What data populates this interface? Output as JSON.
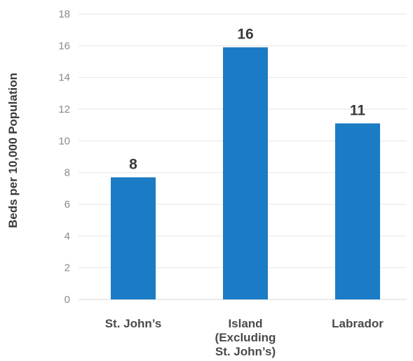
{
  "chart_data": {
    "type": "bar",
    "title": "",
    "xlabel": "",
    "ylabel": "Beds per 10,000 Population",
    "categories": [
      [
        "St. John’s"
      ],
      [
        "Island",
        "(Excluding",
        "St. John’s)"
      ],
      [
        "Labrador"
      ]
    ],
    "values": [
      7.7,
      15.9,
      11.1
    ],
    "data_labels": [
      "8",
      "16",
      "11"
    ],
    "ylim": [
      0,
      18
    ],
    "y_ticks": [
      0,
      2,
      4,
      6,
      8,
      10,
      12,
      14,
      16,
      18
    ],
    "grid": true,
    "legend": "none",
    "colors": {
      "bar": "#1b7bc4",
      "grid": "#e6e6e6"
    }
  }
}
